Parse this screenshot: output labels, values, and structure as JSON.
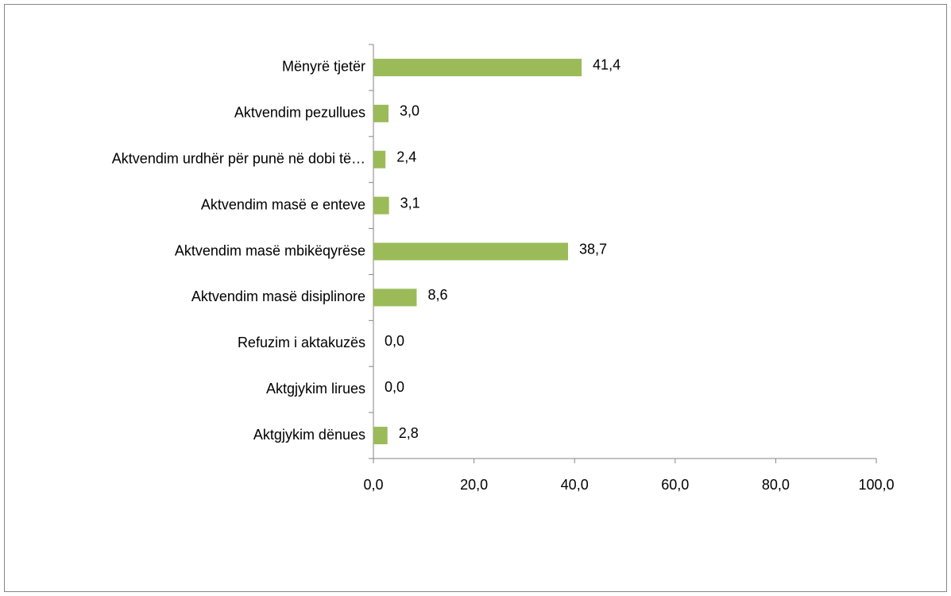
{
  "chart_data": {
    "type": "bar",
    "orientation": "horizontal",
    "categories": [
      "Mënyrë tjetër",
      "Aktvendim pezullues",
      "Aktvendim urdhër për punë në dobi të…",
      "Aktvendim masë e enteve",
      "Aktvendim masë mbikëqyrëse",
      "Aktvendim masë disiplinore",
      "Refuzim i aktakuzës",
      "Aktgjykim lirues",
      "Aktgjykim dënues"
    ],
    "values": [
      41.4,
      3.0,
      2.4,
      3.1,
      38.7,
      8.6,
      0.0,
      0.0,
      2.8
    ],
    "value_labels": [
      "41,4",
      "3,0",
      "2,4",
      "3,1",
      "38,7",
      "8,6",
      "0,0",
      "0,0",
      "2,8"
    ],
    "color": "#9bbb59",
    "xlim": [
      0,
      100
    ],
    "xticks": [
      {
        "value": 0,
        "label": "0,0"
      },
      {
        "value": 20,
        "label": "20,0"
      },
      {
        "value": 40,
        "label": "40,0"
      },
      {
        "value": 60,
        "label": "60,0"
      },
      {
        "value": 80,
        "label": "80,0"
      },
      {
        "value": 100,
        "label": "100,0"
      }
    ],
    "grid": false
  }
}
